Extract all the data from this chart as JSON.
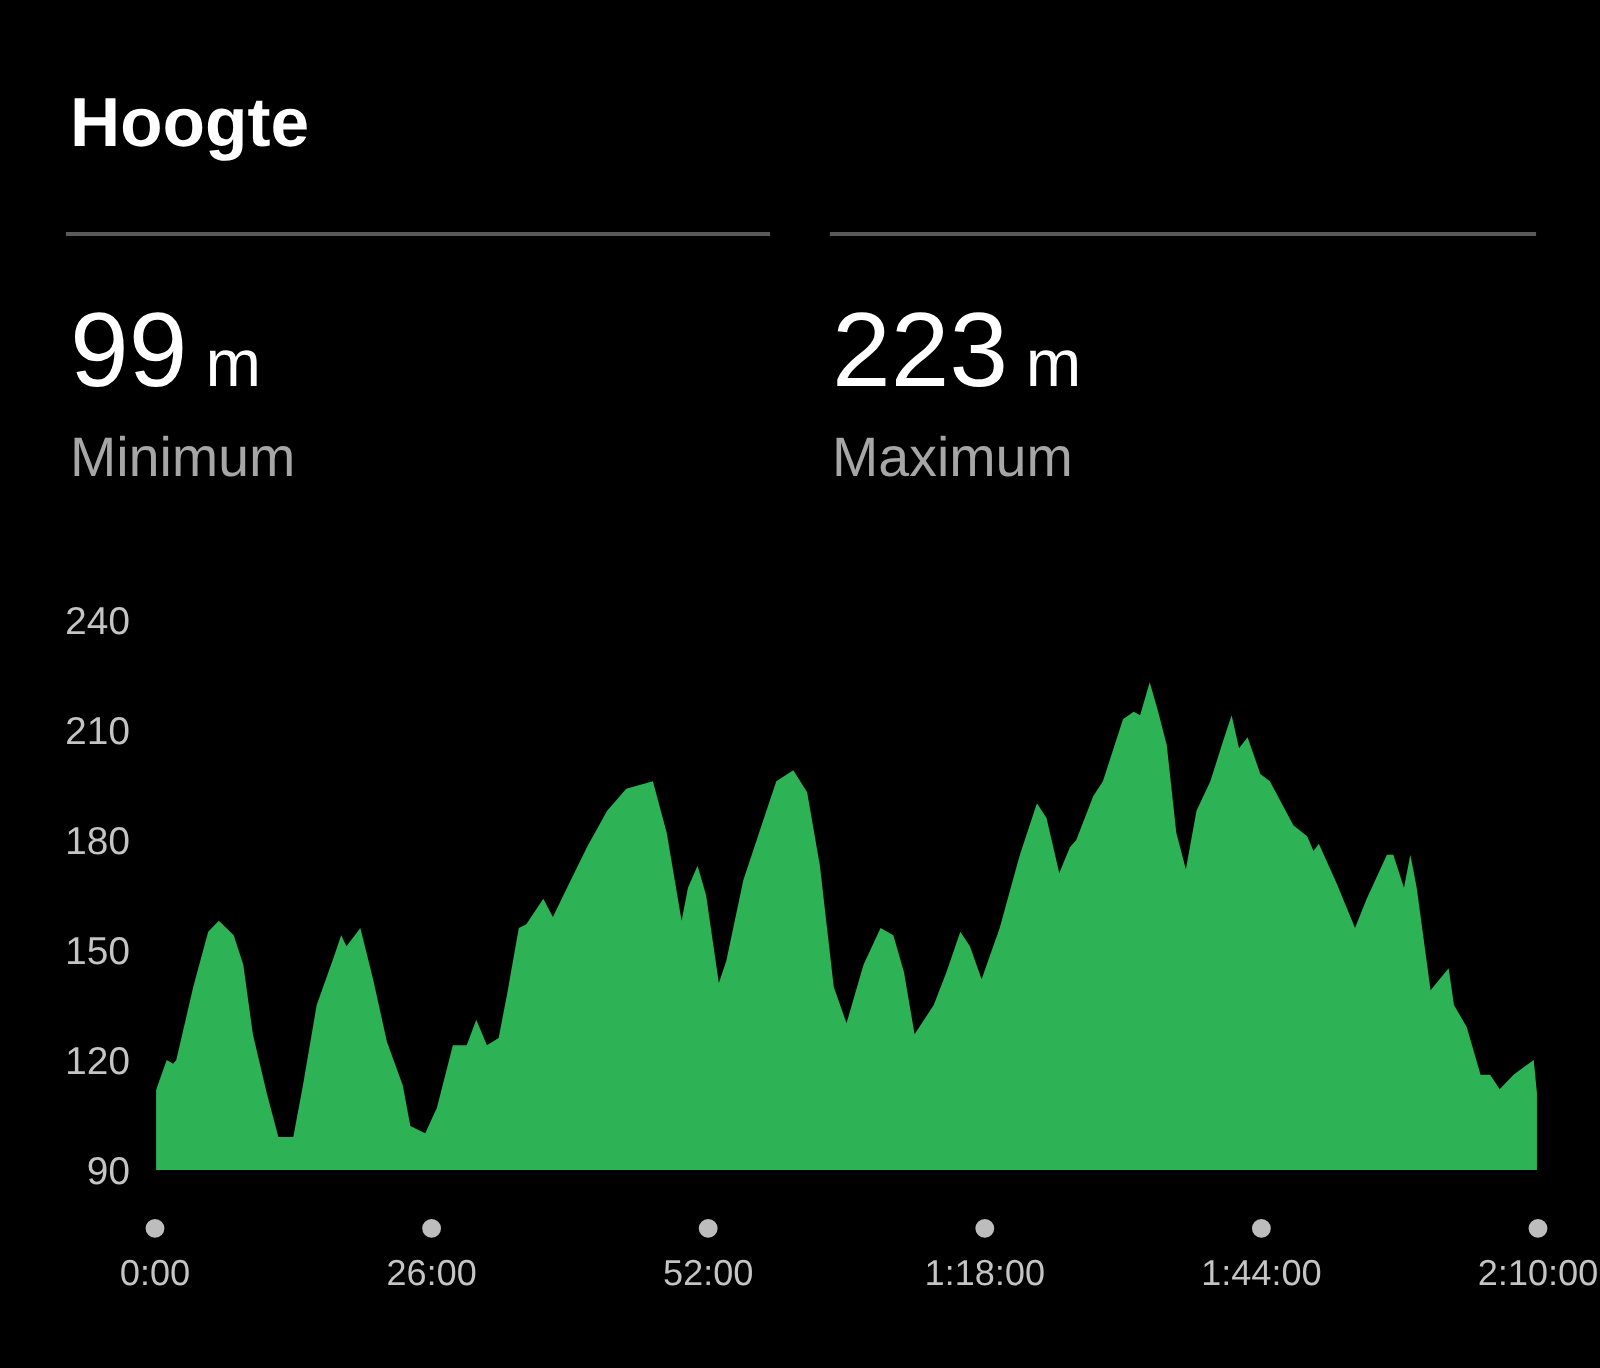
{
  "chart_data": {
    "type": "area",
    "title": "Hoogte",
    "annotations": [
      "99 m",
      "Minimum",
      "223 m",
      "Maximum"
    ],
    "x": [
      0.0,
      1.1,
      1.7,
      2.0,
      3.6,
      5.0,
      6.0,
      7.4,
      8.3,
      9.2,
      10.5,
      11.6,
      13.0,
      13.9,
      15.2,
      16.8,
      17.5,
      18.0,
      19.3,
      20.5,
      21.8,
      23.3,
      24.0,
      25.4,
      26.5,
      28.0,
      29.3,
      30.2,
      31.2,
      32.3,
      33.1,
      34.2,
      34.9,
      36.5,
      37.4,
      38.4,
      40.6,
      42.5,
      44.3,
      46.8,
      48.1,
      49.5,
      50.1,
      51.0,
      51.8,
      53.0,
      53.7,
      55.3,
      56.9,
      58.4,
      60.0,
      61.3,
      62.5,
      63.8,
      65.0,
      66.6,
      68.2,
      69.4,
      70.4,
      71.4,
      73.2,
      74.4,
      75.7,
      76.6,
      77.7,
      79.4,
      81.3,
      82.9,
      83.8,
      85.0,
      86.0,
      86.6,
      88.2,
      89.1,
      91.0,
      92.0,
      92.6,
      93.5,
      94.2,
      95.1,
      96.0,
      96.9,
      97.9,
      99.2,
      100.4,
      101.2,
      101.9,
      102.7,
      103.9,
      104.8,
      107.0,
      108.3,
      108.9,
      109.4,
      111.1,
      112.8,
      113.9,
      115.8,
      116.4,
      117.4,
      118.0,
      118.6,
      119.9,
      121.6,
      122.1,
      123.3,
      124.6,
      125.5,
      126.4,
      127.7,
      129.6,
      129.9
    ],
    "values": [
      111,
      120,
      119,
      120,
      140,
      155,
      158,
      154,
      146,
      127,
      111,
      99,
      99,
      113,
      135,
      148,
      154,
      151,
      156,
      142,
      125,
      113,
      102,
      100,
      107,
      124,
      124,
      131,
      124,
      126,
      138,
      156,
      157,
      164,
      159,
      165,
      178,
      188,
      194,
      196,
      182,
      158,
      167,
      173,
      165,
      141,
      147,
      169,
      183,
      196,
      199,
      193,
      173,
      140,
      130,
      146,
      156,
      154,
      144,
      127,
      135,
      144,
      155,
      151,
      142,
      156,
      176,
      190,
      186,
      171,
      178,
      180,
      192,
      196,
      213,
      215,
      214,
      223,
      216,
      206,
      182,
      172,
      188,
      196,
      207,
      214,
      205,
      208,
      198,
      196,
      184,
      181,
      177,
      179,
      168,
      156,
      164,
      176,
      176,
      167,
      176,
      167,
      139,
      145,
      135,
      129,
      116,
      116,
      112,
      116,
      120,
      111
    ],
    "color": "#2eb256",
    "xlim": [
      0,
      130
    ],
    "xticks": [
      {
        "value": 0,
        "label": "0:00"
      },
      {
        "value": 26,
        "label": "26:00"
      },
      {
        "value": 52,
        "label": "52:00"
      },
      {
        "value": 78,
        "label": "1:18:00"
      },
      {
        "value": 104,
        "label": "1:44:00"
      },
      {
        "value": 130,
        "label": "2:10:00"
      }
    ],
    "ylim": [
      90,
      240
    ],
    "yticks": [
      90,
      120,
      150,
      180,
      210,
      240
    ]
  }
}
